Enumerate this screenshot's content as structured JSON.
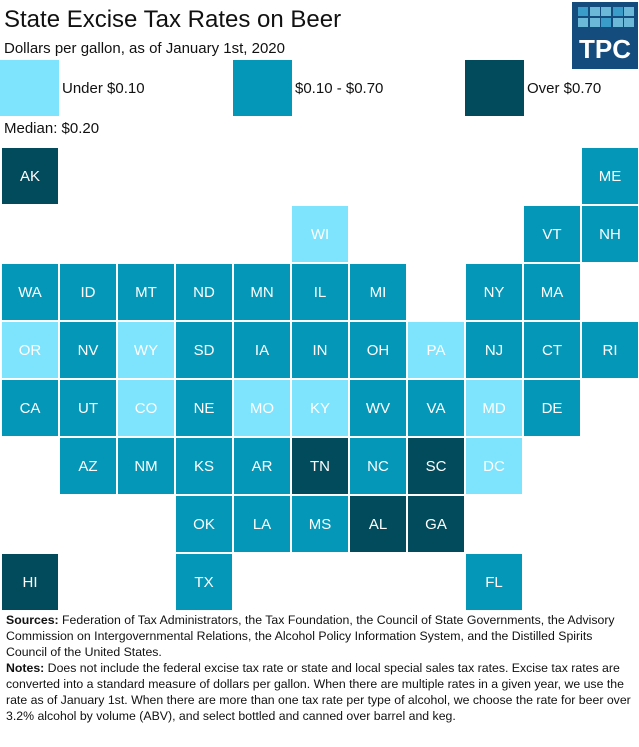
{
  "title": "State Excise Tax Rates on Beer",
  "subtitle": "Dollars per gallon, as of January 1st, 2020",
  "logo": "TPC",
  "median": "Median: $0.20",
  "chart_data": {
    "type": "heatmap",
    "title": "State Excise Tax Rates on Beer",
    "legend": [
      {
        "key": "low",
        "label": "Under $0.10",
        "color": "#7ee3fd"
      },
      {
        "key": "mid",
        "label": "$0.10 - $0.70",
        "color": "#0497b8"
      },
      {
        "key": "high",
        "label": "Over $0.70",
        "color": "#024b5c"
      }
    ],
    "states": [
      {
        "s": "AK",
        "c": 0,
        "r": 0,
        "k": "high"
      },
      {
        "s": "ME",
        "c": 10,
        "r": 0,
        "k": "mid"
      },
      {
        "s": "WI",
        "c": 5,
        "r": 1,
        "k": "low"
      },
      {
        "s": "VT",
        "c": 9,
        "r": 1,
        "k": "mid"
      },
      {
        "s": "NH",
        "c": 10,
        "r": 1,
        "k": "mid"
      },
      {
        "s": "WA",
        "c": 0,
        "r": 2,
        "k": "mid"
      },
      {
        "s": "ID",
        "c": 1,
        "r": 2,
        "k": "mid"
      },
      {
        "s": "MT",
        "c": 2,
        "r": 2,
        "k": "mid"
      },
      {
        "s": "ND",
        "c": 3,
        "r": 2,
        "k": "mid"
      },
      {
        "s": "MN",
        "c": 4,
        "r": 2,
        "k": "mid"
      },
      {
        "s": "IL",
        "c": 5,
        "r": 2,
        "k": "mid"
      },
      {
        "s": "MI",
        "c": 6,
        "r": 2,
        "k": "mid"
      },
      {
        "s": "NY",
        "c": 8,
        "r": 2,
        "k": "mid"
      },
      {
        "s": "MA",
        "c": 9,
        "r": 2,
        "k": "mid"
      },
      {
        "s": "OR",
        "c": 0,
        "r": 3,
        "k": "low"
      },
      {
        "s": "NV",
        "c": 1,
        "r": 3,
        "k": "mid"
      },
      {
        "s": "WY",
        "c": 2,
        "r": 3,
        "k": "low"
      },
      {
        "s": "SD",
        "c": 3,
        "r": 3,
        "k": "mid"
      },
      {
        "s": "IA",
        "c": 4,
        "r": 3,
        "k": "mid"
      },
      {
        "s": "IN",
        "c": 5,
        "r": 3,
        "k": "mid"
      },
      {
        "s": "OH",
        "c": 6,
        "r": 3,
        "k": "mid"
      },
      {
        "s": "PA",
        "c": 7,
        "r": 3,
        "k": "low"
      },
      {
        "s": "NJ",
        "c": 8,
        "r": 3,
        "k": "mid"
      },
      {
        "s": "CT",
        "c": 9,
        "r": 3,
        "k": "mid"
      },
      {
        "s": "RI",
        "c": 10,
        "r": 3,
        "k": "mid"
      },
      {
        "s": "CA",
        "c": 0,
        "r": 4,
        "k": "mid"
      },
      {
        "s": "UT",
        "c": 1,
        "r": 4,
        "k": "mid"
      },
      {
        "s": "CO",
        "c": 2,
        "r": 4,
        "k": "low"
      },
      {
        "s": "NE",
        "c": 3,
        "r": 4,
        "k": "mid"
      },
      {
        "s": "MO",
        "c": 4,
        "r": 4,
        "k": "low"
      },
      {
        "s": "KY",
        "c": 5,
        "r": 4,
        "k": "low"
      },
      {
        "s": "WV",
        "c": 6,
        "r": 4,
        "k": "mid"
      },
      {
        "s": "VA",
        "c": 7,
        "r": 4,
        "k": "mid"
      },
      {
        "s": "MD",
        "c": 8,
        "r": 4,
        "k": "low"
      },
      {
        "s": "DE",
        "c": 9,
        "r": 4,
        "k": "mid"
      },
      {
        "s": "AZ",
        "c": 1,
        "r": 5,
        "k": "mid"
      },
      {
        "s": "NM",
        "c": 2,
        "r": 5,
        "k": "mid"
      },
      {
        "s": "KS",
        "c": 3,
        "r": 5,
        "k": "mid"
      },
      {
        "s": "AR",
        "c": 4,
        "r": 5,
        "k": "mid"
      },
      {
        "s": "TN",
        "c": 5,
        "r": 5,
        "k": "high"
      },
      {
        "s": "NC",
        "c": 6,
        "r": 5,
        "k": "mid"
      },
      {
        "s": "SC",
        "c": 7,
        "r": 5,
        "k": "high"
      },
      {
        "s": "DC",
        "c": 8,
        "r": 5,
        "k": "low"
      },
      {
        "s": "OK",
        "c": 3,
        "r": 6,
        "k": "mid"
      },
      {
        "s": "LA",
        "c": 4,
        "r": 6,
        "k": "mid"
      },
      {
        "s": "MS",
        "c": 5,
        "r": 6,
        "k": "mid"
      },
      {
        "s": "AL",
        "c": 6,
        "r": 6,
        "k": "high"
      },
      {
        "s": "GA",
        "c": 7,
        "r": 6,
        "k": "high"
      },
      {
        "s": "HI",
        "c": 0,
        "r": 7,
        "k": "high"
      },
      {
        "s": "TX",
        "c": 3,
        "r": 7,
        "k": "mid"
      },
      {
        "s": "FL",
        "c": 8,
        "r": 7,
        "k": "mid"
      }
    ]
  },
  "footer": {
    "sources_label": "Sources:",
    "sources": " Federation of Tax Administrators, the Tax Foundation,  the Council of State Governments, the Advisory Commission on Intergovernmental Relations, the Alcohol Policy Information System, and the Distilled Spirits Council of the United States.",
    "notes_label": "Notes:",
    "notes": " Does not include the federal excise tax rate or state and local special sales tax rates. Excise tax rates are converted into a standard measure of dollars per gallon. When there are multiple rates in a given year, we use the rate as of January 1st. When there are more than one tax rate per type of alcohol,  we choose the rate for beer over 3.2% alcohol by volume (ABV), and select bottled and canned over barrel and keg."
  }
}
